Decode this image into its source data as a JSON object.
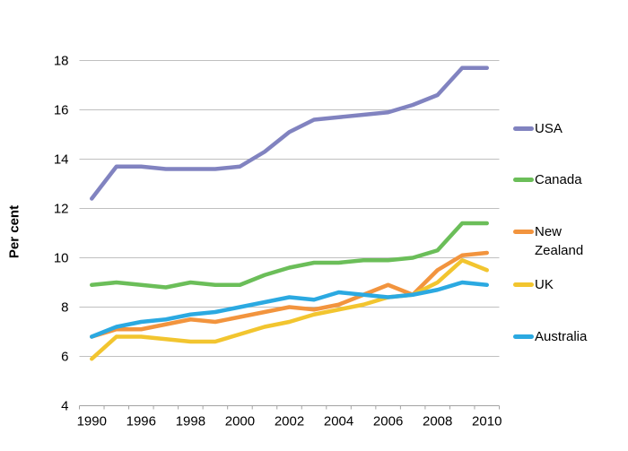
{
  "figure": {
    "background": "#FFFFFF"
  },
  "chart_data": {
    "type": "line",
    "title": "",
    "ylabel": "Per cent",
    "x": [
      "1990",
      "1995",
      "1996",
      "1997",
      "1998",
      "1999",
      "2000",
      "2001",
      "2002",
      "2003",
      "2004",
      "2005",
      "2006",
      "2007",
      "2008",
      "2009",
      "2010"
    ],
    "x_tick_positions": [
      0,
      2,
      4,
      6,
      8,
      10,
      12,
      14,
      16
    ],
    "x_tick_labels": [
      "1990",
      "1996",
      "1998",
      "2000",
      "2002",
      "2004",
      "2006",
      "2008",
      "2010"
    ],
    "ylim": [
      4,
      18
    ],
    "y_ticks": [
      4,
      6,
      8,
      10,
      12,
      14,
      16,
      18
    ],
    "grid": "horizontal",
    "grid_color": "#C0C0C0",
    "axis_color": "#A3A3A3",
    "legend_position": "right",
    "series": [
      {
        "name": "USA",
        "color": "#8183C0",
        "values": [
          12.4,
          13.7,
          13.7,
          13.6,
          13.6,
          13.6,
          13.7,
          14.3,
          15.1,
          15.6,
          15.7,
          15.8,
          15.9,
          16.2,
          16.6,
          17.7,
          17.7
        ]
      },
      {
        "name": "Canada",
        "color": "#6BBE59",
        "values": [
          8.9,
          9.0,
          8.9,
          8.8,
          9.0,
          8.9,
          8.9,
          9.3,
          9.6,
          9.8,
          9.8,
          9.9,
          9.9,
          10.0,
          10.3,
          11.4,
          11.4
        ]
      },
      {
        "name": "New Zealand",
        "color": "#F2943E",
        "values": [
          6.8,
          7.1,
          7.1,
          7.3,
          7.5,
          7.4,
          7.6,
          7.8,
          8.0,
          7.9,
          8.1,
          8.5,
          8.9,
          8.5,
          9.5,
          10.1,
          10.2
        ]
      },
      {
        "name": "UK",
        "color": "#F2C52F",
        "values": [
          5.9,
          6.8,
          6.8,
          6.7,
          6.6,
          6.6,
          6.9,
          7.2,
          7.4,
          7.7,
          7.9,
          8.1,
          8.4,
          8.5,
          9.0,
          9.9,
          9.5
        ]
      },
      {
        "name": "Australia",
        "color": "#2BA9E1",
        "values": [
          6.8,
          7.2,
          7.4,
          7.5,
          7.7,
          7.8,
          8.0,
          8.2,
          8.4,
          8.3,
          8.6,
          8.5,
          8.4,
          8.5,
          8.7,
          9.0,
          8.9
        ]
      }
    ]
  },
  "legend": {
    "row_tops": [
      133,
      190,
      248,
      307,
      365
    ]
  }
}
